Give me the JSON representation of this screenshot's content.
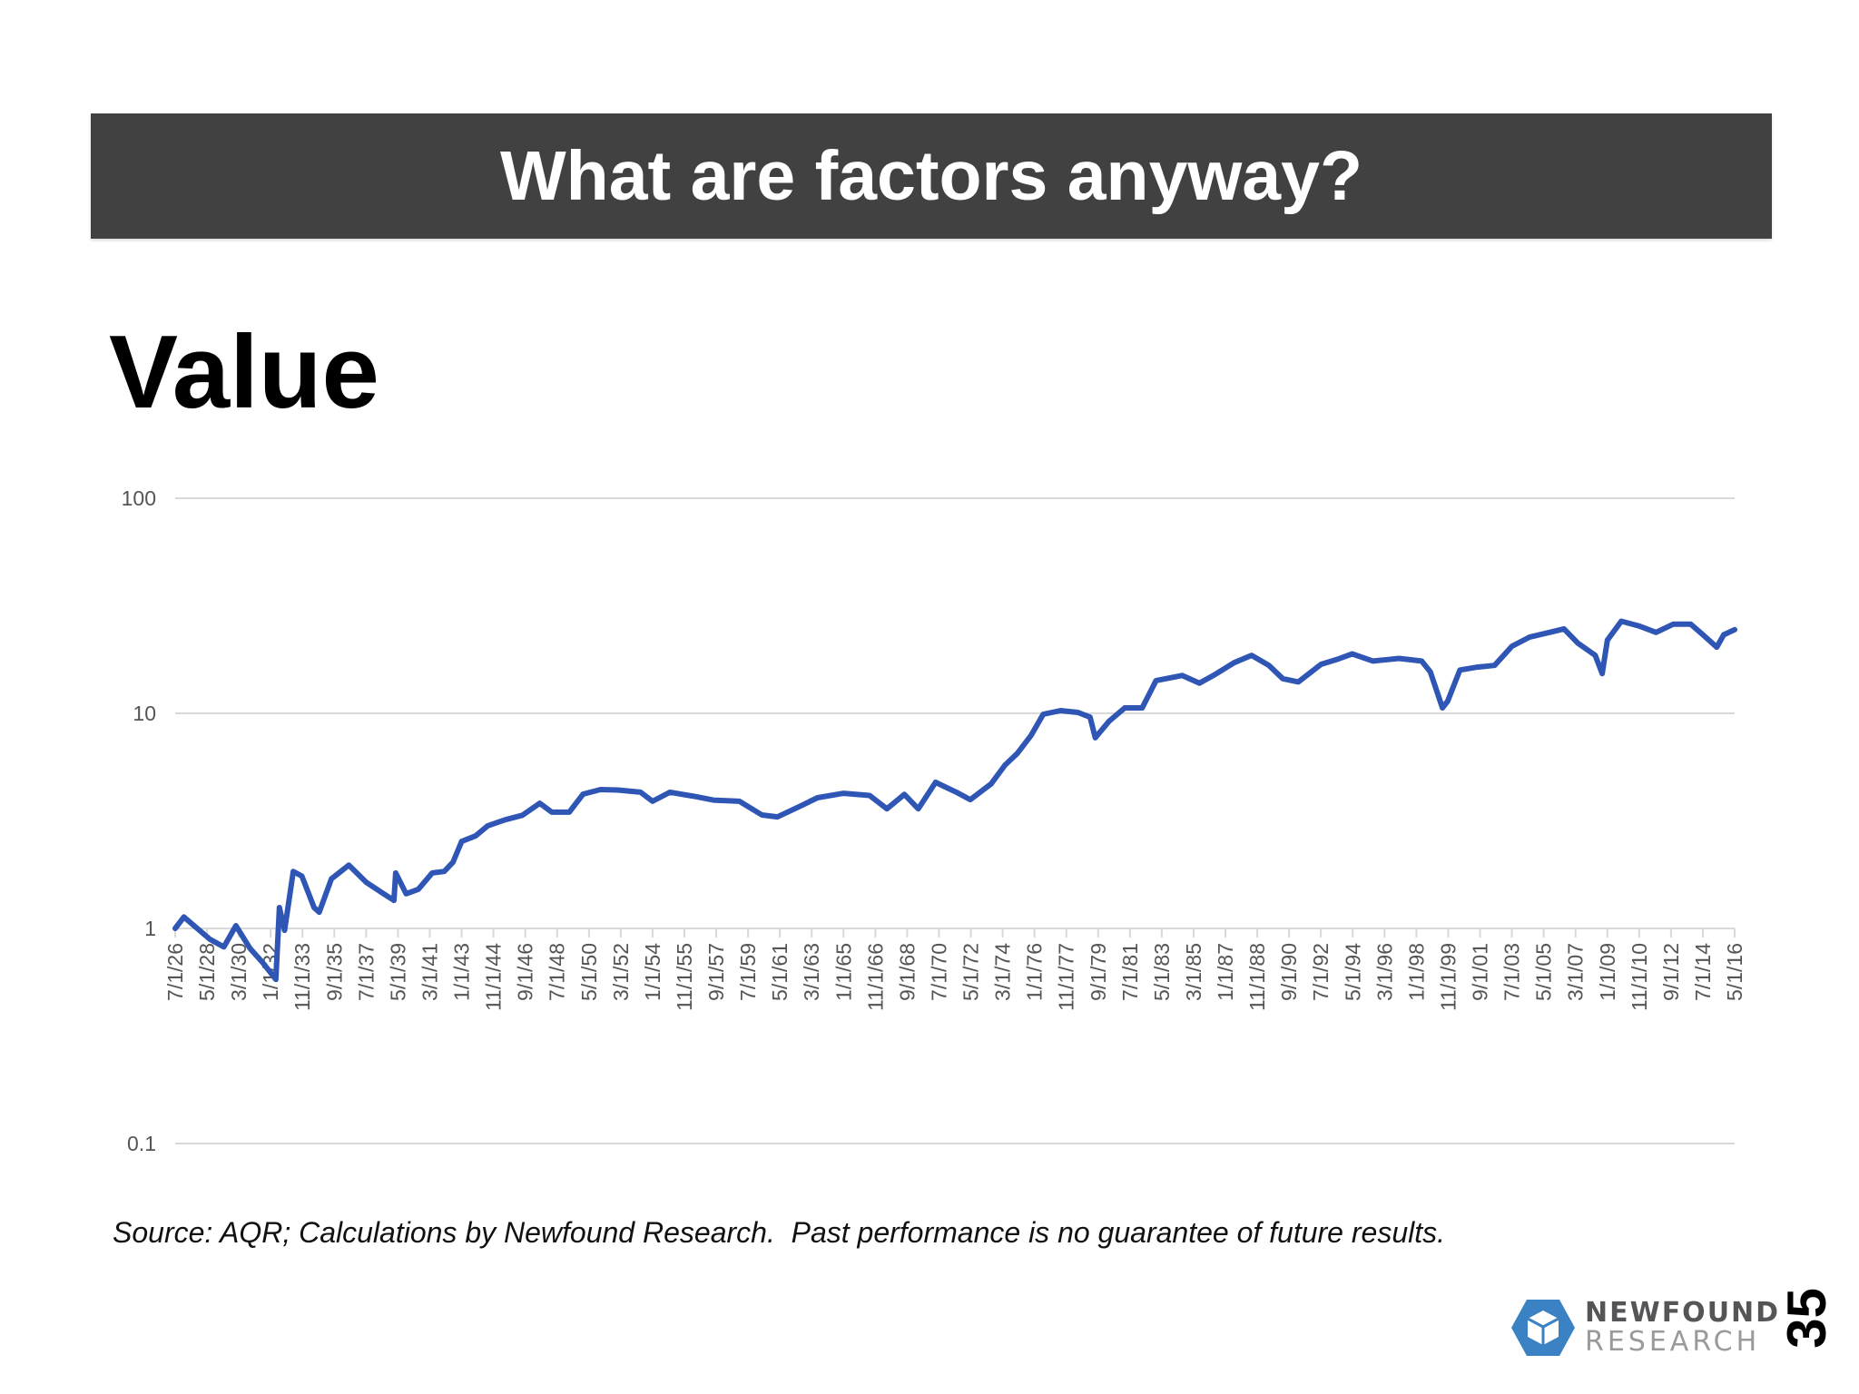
{
  "slide": {
    "title": "What are factors anyway?",
    "heading": "Value",
    "source": "Source: AQR; Calculations by Newfound Research.  Past performance is no guarantee of future results.",
    "page_number": "35",
    "logo": {
      "line1": "NEWFOUND",
      "line2": "RESEARCH",
      "icon": "hexagon-cube-icon",
      "colors": {
        "hexagon": "#3b82c4",
        "line1": "#555558",
        "line2": "#9a9a9c"
      }
    }
  },
  "colors": {
    "title_bar": "#414141",
    "line": "#2f55b5",
    "grid": "#d9d9d9",
    "tick_text": "#555555"
  },
  "chart_data": {
    "type": "line",
    "title": "Value",
    "xlabel": "",
    "ylabel": "",
    "yscale": "log",
    "ylim": [
      0.1,
      100
    ],
    "y_ticks": [
      "100",
      "10",
      "1",
      "0.1"
    ],
    "grid": true,
    "legend": null,
    "x_tick_labels": [
      "7/1/26",
      "5/1/28",
      "3/1/30",
      "1/1/32",
      "11/1/33",
      "9/1/35",
      "7/1/37",
      "5/1/39",
      "3/1/41",
      "1/1/43",
      "11/1/44",
      "9/1/46",
      "7/1/48",
      "5/1/50",
      "3/1/52",
      "1/1/54",
      "11/1/55",
      "9/1/57",
      "7/1/59",
      "5/1/61",
      "3/1/63",
      "1/1/65",
      "11/1/66",
      "9/1/68",
      "7/1/70",
      "5/1/72",
      "3/1/74",
      "1/1/76",
      "11/1/77",
      "9/1/79",
      "7/1/81",
      "5/1/83",
      "3/1/85",
      "1/1/87",
      "11/1/88",
      "9/1/90",
      "7/1/92",
      "5/1/94",
      "3/1/96",
      "1/1/98",
      "11/1/99",
      "9/1/01",
      "7/1/03",
      "5/1/05",
      "3/1/07",
      "1/1/09",
      "11/1/10",
      "9/1/12",
      "7/1/14",
      "5/1/16"
    ],
    "x_range": [
      1926.5,
      2016.33
    ],
    "series": [
      {
        "name": "Value",
        "x": [
          1926.5,
          1927.0,
          1928.5,
          1929.3,
          1930.0,
          1930.8,
          1931.5,
          1932.3,
          1932.5,
          1932.8,
          1933.3,
          1933.8,
          1934.5,
          1934.8,
          1935.5,
          1936.5,
          1937.5,
          1938.5,
          1939.1,
          1939.2,
          1939.8,
          1940.5,
          1941.3,
          1942.0,
          1942.5,
          1943.0,
          1943.8,
          1944.5,
          1945.5,
          1946.5,
          1947.5,
          1948.2,
          1949.2,
          1950.0,
          1951.0,
          1952.0,
          1953.3,
          1954.0,
          1955.0,
          1956.5,
          1957.5,
          1959.0,
          1960.3,
          1961.2,
          1962.5,
          1963.5,
          1965.0,
          1966.5,
          1967.5,
          1968.5,
          1969.3,
          1970.3,
          1971.5,
          1972.3,
          1973.5,
          1974.3,
          1975.0,
          1975.8,
          1976.5,
          1977.5,
          1978.5,
          1979.2,
          1979.5,
          1980.3,
          1981.2,
          1982.2,
          1983.0,
          1984.5,
          1985.5,
          1986.3,
          1987.5,
          1988.5,
          1989.5,
          1990.3,
          1991.2,
          1992.5,
          1993.5,
          1994.3,
          1995.5,
          1997.0,
          1998.3,
          1998.8,
          1999.5,
          1999.8,
          2000.5,
          2001.5,
          2002.5,
          2003.5,
          2004.5,
          2005.5,
          2006.5,
          2007.3,
          2008.3,
          2008.7,
          2009.0,
          2009.8,
          2010.8,
          2011.8,
          2012.8,
          2013.8,
          2014.5,
          2015.3,
          2015.7,
          2016.33
        ],
        "values": [
          1.0,
          1.13,
          0.89,
          0.82,
          1.03,
          0.81,
          0.7,
          0.58,
          1.25,
          0.98,
          1.84,
          1.75,
          1.25,
          1.19,
          1.7,
          1.97,
          1.64,
          1.45,
          1.35,
          1.81,
          1.45,
          1.52,
          1.81,
          1.84,
          2.03,
          2.54,
          2.69,
          3.0,
          3.2,
          3.36,
          3.82,
          3.47,
          3.47,
          4.21,
          4.42,
          4.4,
          4.3,
          3.9,
          4.3,
          4.1,
          3.95,
          3.9,
          3.37,
          3.3,
          3.7,
          4.05,
          4.25,
          4.15,
          3.6,
          4.2,
          3.6,
          4.78,
          4.3,
          3.97,
          4.7,
          5.75,
          6.5,
          7.9,
          9.9,
          10.3,
          10.1,
          9.6,
          7.7,
          9.2,
          10.6,
          10.6,
          14.2,
          15.0,
          13.8,
          15.0,
          17.2,
          18.6,
          16.7,
          14.5,
          14.0,
          16.9,
          17.9,
          18.9,
          17.5,
          18.0,
          17.5,
          15.6,
          10.6,
          11.4,
          15.9,
          16.4,
          16.7,
          20.5,
          22.6,
          23.6,
          24.7,
          21.2,
          18.6,
          15.3,
          21.9,
          26.8,
          25.5,
          23.8,
          26.0,
          26.0,
          23.2,
          20.3,
          23.2,
          24.5
        ]
      }
    ]
  }
}
